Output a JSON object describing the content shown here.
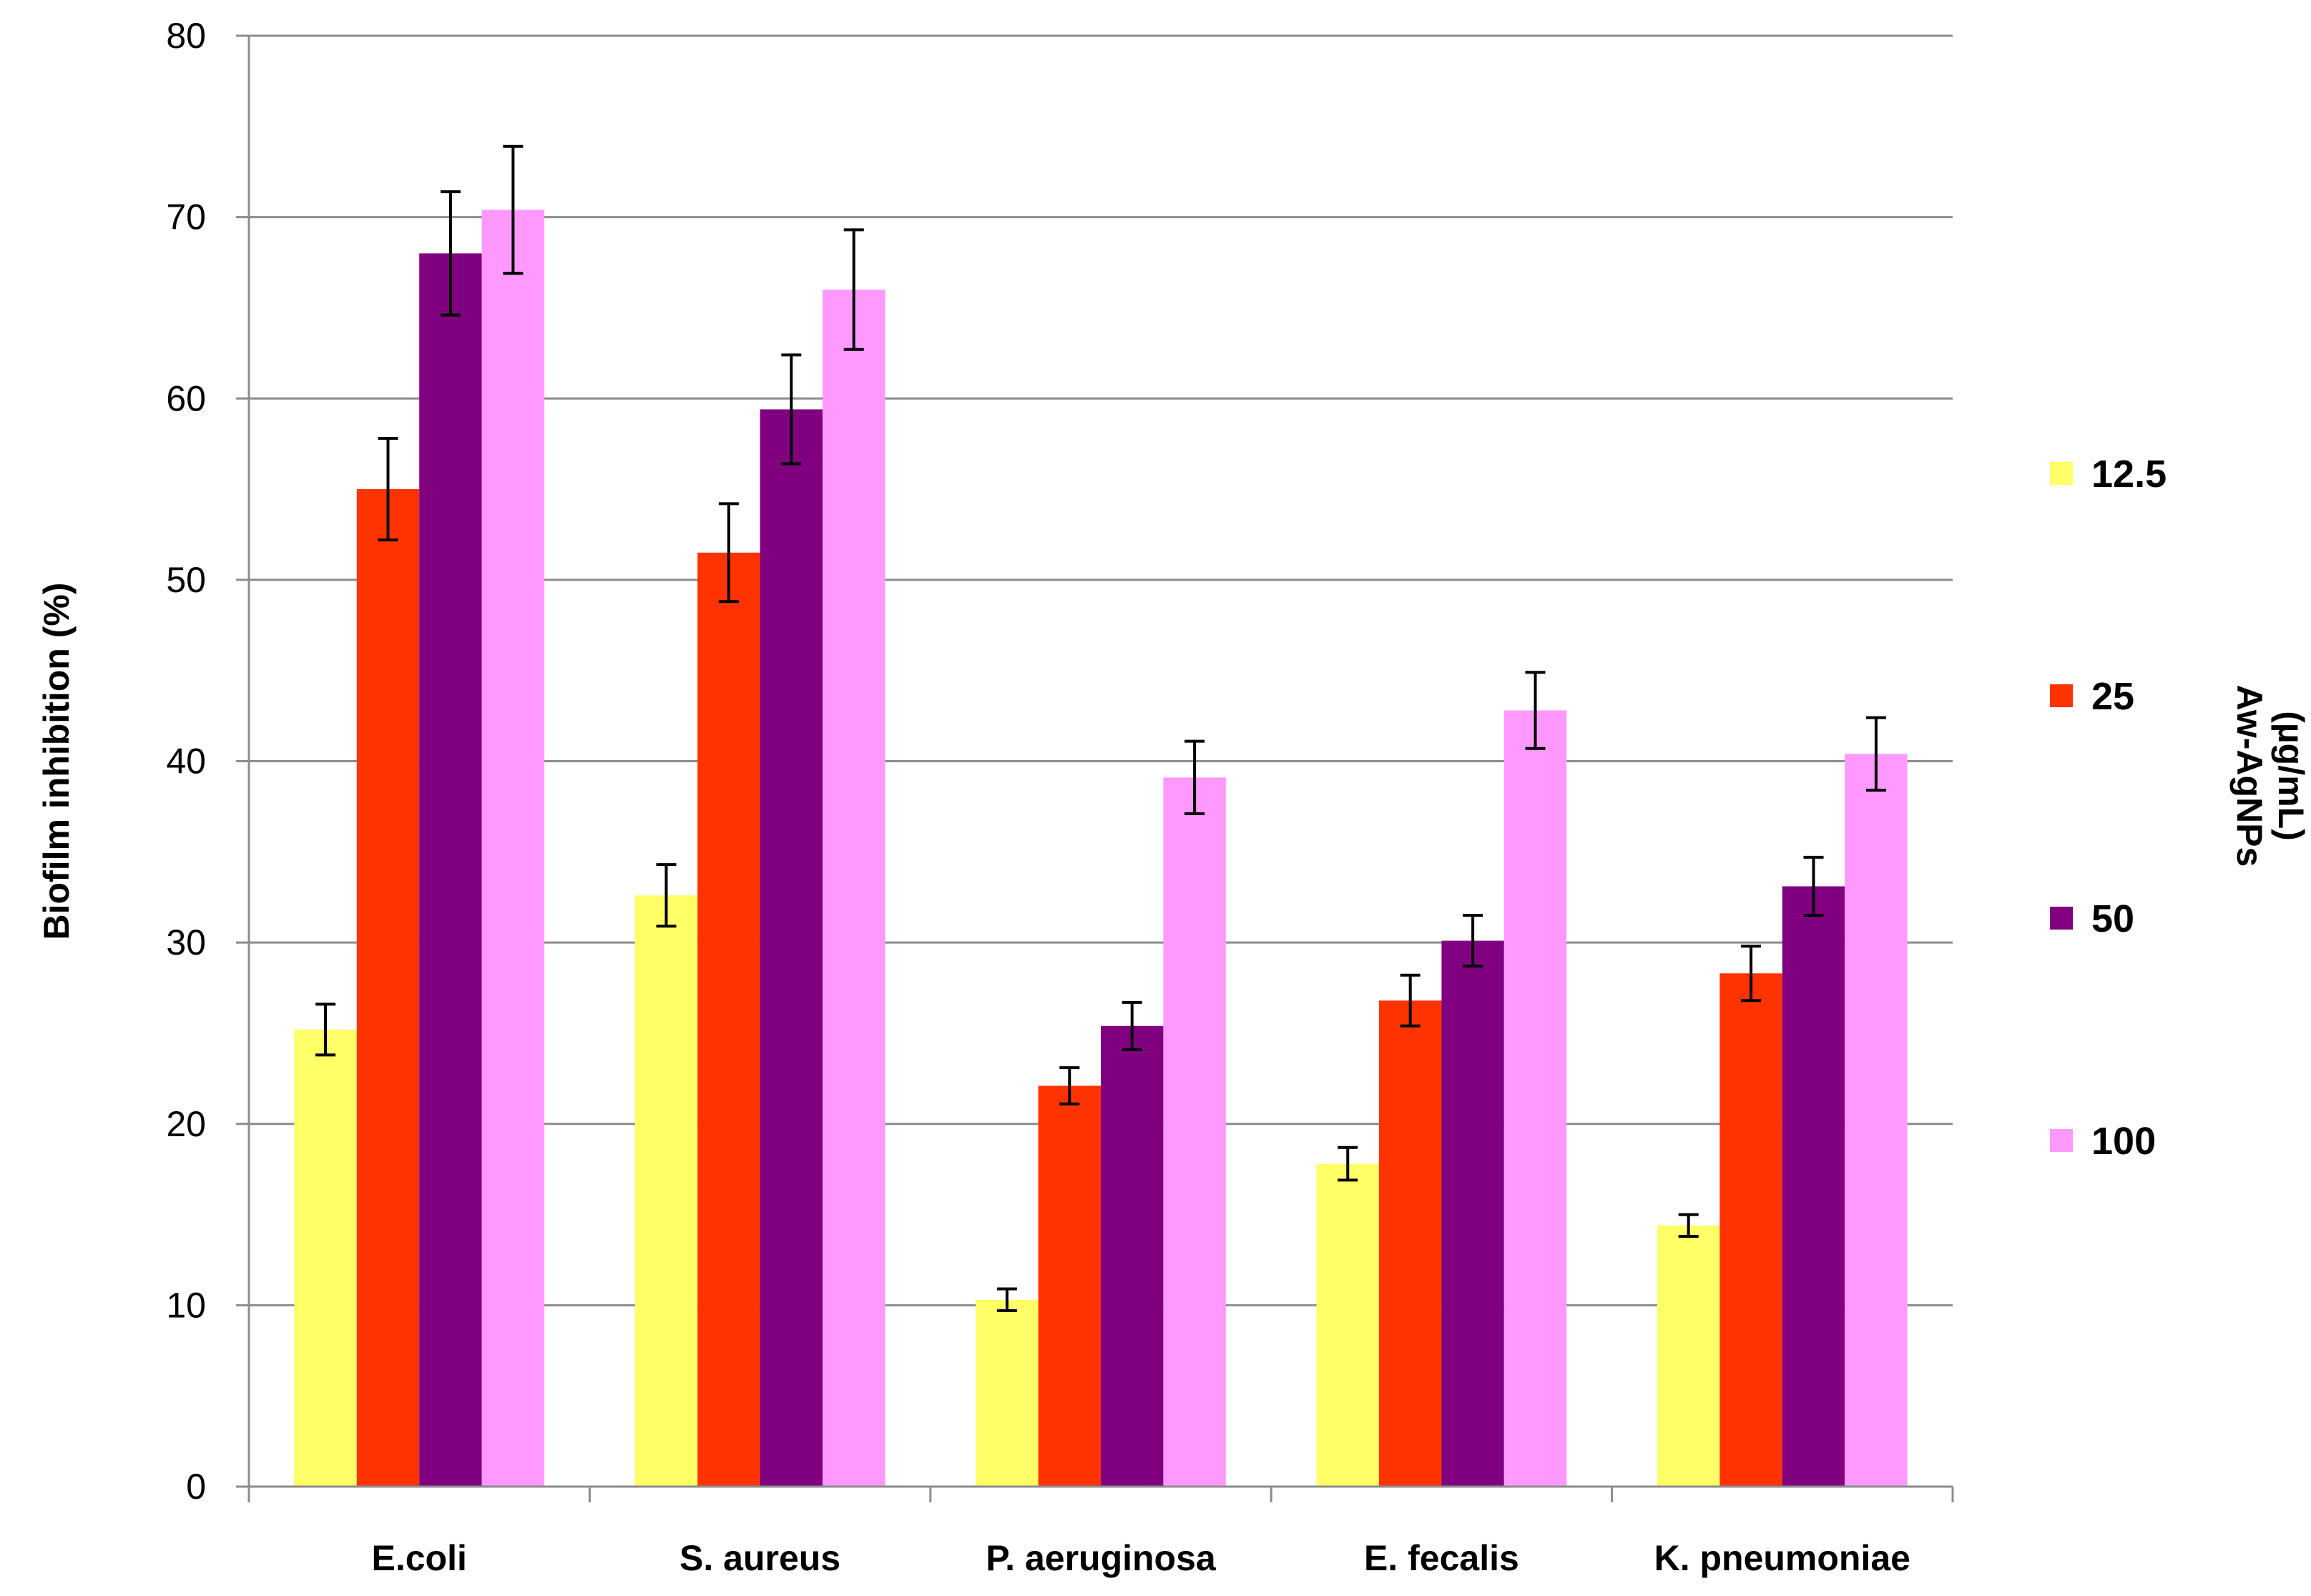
{
  "chart_data": {
    "type": "bar",
    "title": "",
    "xlabel": "",
    "ylabel": "Biofilm inhibition (%)",
    "ylim": [
      0,
      80
    ],
    "yticks": [
      0,
      10,
      20,
      30,
      40,
      50,
      60,
      70,
      80
    ],
    "grid": true,
    "categories": [
      "E.coli",
      "S. aureus",
      "P. aeruginosa",
      "E. fecalis",
      "K. pneumoniae"
    ],
    "legend_title": [
      "Aw-AgNPs",
      "(µg/mL)"
    ],
    "legend_position": "right",
    "series": [
      {
        "name": "12.5",
        "color": "#FFFF66",
        "values": [
          25.2,
          32.6,
          10.3,
          17.8,
          14.4
        ],
        "errors": [
          1.4,
          1.7,
          0.6,
          0.9,
          0.6
        ]
      },
      {
        "name": "25",
        "color": "#FF3300",
        "values": [
          55.0,
          51.5,
          22.1,
          26.8,
          28.3
        ],
        "errors": [
          2.8,
          2.7,
          1.0,
          1.4,
          1.5
        ]
      },
      {
        "name": "50",
        "color": "#800080",
        "values": [
          68.0,
          59.4,
          25.4,
          30.1,
          33.1
        ],
        "errors": [
          3.4,
          3.0,
          1.3,
          1.4,
          1.6
        ]
      },
      {
        "name": "100",
        "color": "#FF99FF",
        "values": [
          70.4,
          66.0,
          39.1,
          42.8,
          40.4
        ],
        "errors": [
          3.5,
          3.3,
          2.0,
          2.1,
          2.0
        ]
      }
    ]
  }
}
